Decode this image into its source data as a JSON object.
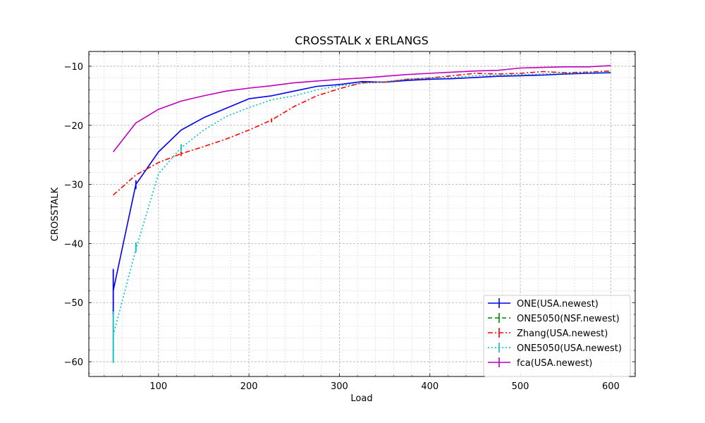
{
  "chart_data": {
    "type": "line",
    "title": "CROSSTALK x ERLANGS",
    "xlabel": "Load",
    "ylabel": "CROSSTALK",
    "xlim": [
      23,
      627
    ],
    "ylim": [
      -62.5,
      -7.5
    ],
    "x_ticks": [
      100,
      200,
      300,
      400,
      500,
      600
    ],
    "y_ticks": [
      -60,
      -50,
      -40,
      -30,
      -20,
      -10
    ],
    "grid": true,
    "legend_position": "lower-right",
    "series": [
      {
        "name": "ONE(USA.newest)",
        "color": "#0000ee",
        "dash": "solid",
        "points": [
          [
            50,
            -48.0
          ],
          [
            75,
            -30.0
          ],
          [
            100,
            -24.5
          ],
          [
            125,
            -20.8
          ],
          [
            150,
            -18.7
          ],
          [
            175,
            -17.1
          ],
          [
            200,
            -15.5
          ],
          [
            225,
            -15.0
          ],
          [
            250,
            -14.2
          ],
          [
            275,
            -13.4
          ],
          [
            300,
            -13.1
          ],
          [
            325,
            -12.6
          ],
          [
            350,
            -12.7
          ],
          [
            375,
            -12.4
          ],
          [
            400,
            -12.2
          ],
          [
            425,
            -12.1
          ],
          [
            450,
            -11.9
          ],
          [
            475,
            -11.7
          ],
          [
            500,
            -11.6
          ],
          [
            525,
            -11.5
          ],
          [
            550,
            -11.3
          ],
          [
            575,
            -11.2
          ],
          [
            600,
            -11.1
          ]
        ],
        "errors": [
          [
            50,
            -52.0,
            -44.3
          ],
          [
            75,
            -30.8,
            -29.3
          ]
        ]
      },
      {
        "name": "ONE5050(NSF.newest)",
        "color": "#008000",
        "dash": "dashed",
        "points": [],
        "errors": []
      },
      {
        "name": "Zhang(USA.newest)",
        "color": "#ff0000",
        "dash": "dashdot",
        "points": [
          [
            50,
            -31.8
          ],
          [
            75,
            -28.4
          ],
          [
            100,
            -26.3
          ],
          [
            125,
            -24.8
          ],
          [
            150,
            -23.6
          ],
          [
            175,
            -22.3
          ],
          [
            200,
            -20.8
          ],
          [
            225,
            -19.1
          ],
          [
            250,
            -16.8
          ],
          [
            275,
            -15.0
          ],
          [
            300,
            -13.8
          ],
          [
            325,
            -12.8
          ],
          [
            350,
            -12.7
          ],
          [
            375,
            -12.2
          ],
          [
            400,
            -12.0
          ],
          [
            425,
            -11.6
          ],
          [
            450,
            -11.2
          ],
          [
            475,
            -11.3
          ],
          [
            500,
            -11.2
          ],
          [
            525,
            -10.9
          ],
          [
            550,
            -11.1
          ],
          [
            575,
            -11.0
          ],
          [
            600,
            -10.8
          ]
        ],
        "errors": [
          [
            125,
            -25.2,
            -24.4
          ],
          [
            225,
            -19.5,
            -18.8
          ]
        ]
      },
      {
        "name": "ONE5050(USA.newest)",
        "color": "#00bfbf",
        "dash": "dotted",
        "points": [
          [
            50,
            -55.5
          ],
          [
            75,
            -41.0
          ],
          [
            100,
            -28.2
          ],
          [
            125,
            -23.8
          ],
          [
            150,
            -20.8
          ],
          [
            175,
            -18.5
          ],
          [
            200,
            -17.0
          ],
          [
            225,
            -15.7
          ],
          [
            250,
            -15.0
          ],
          [
            275,
            -14.0
          ],
          [
            300,
            -13.3
          ],
          [
            325,
            -12.9
          ],
          [
            350,
            -12.6
          ],
          [
            375,
            -12.2
          ],
          [
            400,
            -12.0
          ],
          [
            425,
            -11.9
          ],
          [
            450,
            -11.6
          ],
          [
            475,
            -11.5
          ],
          [
            500,
            -11.4
          ],
          [
            525,
            -11.3
          ],
          [
            550,
            -11.2
          ],
          [
            575,
            -11.1
          ],
          [
            600,
            -11.0
          ]
        ],
        "errors": [
          [
            50,
            -60.2,
            -51.5
          ],
          [
            75,
            -41.5,
            -39.8
          ],
          [
            125,
            -24.3,
            -23.2
          ]
        ]
      },
      {
        "name": "fca(USA.newest)",
        "color": "#bf00bf",
        "dash": "solid",
        "points": [
          [
            50,
            -24.5
          ],
          [
            75,
            -19.6
          ],
          [
            100,
            -17.3
          ],
          [
            125,
            -15.9
          ],
          [
            150,
            -15.0
          ],
          [
            175,
            -14.2
          ],
          [
            200,
            -13.7
          ],
          [
            225,
            -13.3
          ],
          [
            250,
            -12.8
          ],
          [
            275,
            -12.5
          ],
          [
            300,
            -12.2
          ],
          [
            325,
            -12.0
          ],
          [
            350,
            -11.7
          ],
          [
            375,
            -11.4
          ],
          [
            400,
            -11.2
          ],
          [
            425,
            -11.0
          ],
          [
            450,
            -10.8
          ],
          [
            475,
            -10.7
          ],
          [
            500,
            -10.3
          ],
          [
            525,
            -10.2
          ],
          [
            550,
            -10.1
          ],
          [
            575,
            -10.1
          ],
          [
            600,
            -9.9
          ]
        ],
        "errors": []
      }
    ]
  }
}
